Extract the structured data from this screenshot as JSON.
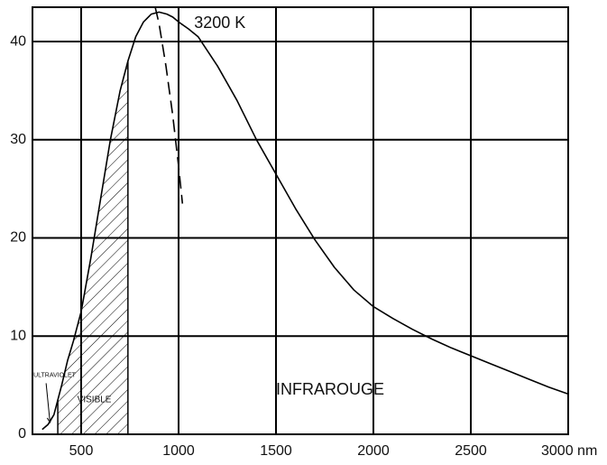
{
  "chart_data": {
    "type": "line",
    "title": "",
    "xlabel": "",
    "ylabel": "",
    "x_unit": "nm",
    "xlim": [
      250,
      3000
    ],
    "ylim": [
      0,
      43.5
    ],
    "grid": true,
    "x_ticks": [
      {
        "value": 500,
        "label": "500"
      },
      {
        "value": 1000,
        "label": "1000"
      },
      {
        "value": 1500,
        "label": "1500"
      },
      {
        "value": 2000,
        "label": "2000"
      },
      {
        "value": 2500,
        "label": "2500"
      },
      {
        "value": 3000,
        "label": "3000 nm"
      }
    ],
    "y_ticks": [
      {
        "value": 0,
        "label": "0"
      },
      {
        "value": 10,
        "label": "10"
      },
      {
        "value": 20,
        "label": "20"
      },
      {
        "value": 30,
        "label": "30"
      },
      {
        "value": 40,
        "label": "40"
      }
    ],
    "series": [
      {
        "name": "3200 K",
        "style": "solid",
        "color": "#000000",
        "x": [
          300,
          330,
          360,
          380,
          400,
          430,
          460,
          500,
          550,
          600,
          650,
          700,
          740,
          780,
          820,
          860,
          900,
          940,
          970,
          1000,
          1050,
          1100,
          1200,
          1300,
          1400,
          1500,
          1600,
          1700,
          1800,
          1900,
          2000,
          2100,
          2200,
          2300,
          2400,
          2500,
          2600,
          2700,
          2800,
          2900,
          3000
        ],
        "y": [
          0.5,
          1.0,
          2.0,
          3.5,
          5.0,
          7.5,
          9.5,
          12.5,
          18,
          24,
          30,
          35,
          38,
          40.5,
          42,
          42.8,
          43.0,
          42.8,
          42.5,
          42.0,
          41.3,
          40.5,
          37.5,
          34,
          30,
          26.5,
          23,
          19.8,
          17,
          14.7,
          13.0,
          11.8,
          10.7,
          9.7,
          8.8,
          8.0,
          7.2,
          6.4,
          5.6,
          4.8,
          4.1
        ]
      },
      {
        "name": "",
        "style": "dashed",
        "color": "#000000",
        "x": [
          880,
          900,
          935,
          970,
          1000,
          1020
        ],
        "y": [
          43.5,
          41.8,
          37.5,
          32.5,
          27.3,
          23.5
        ]
      }
    ],
    "shaded_region": {
      "name": "VISIBLE",
      "x_from": 380,
      "x_to": 740,
      "pattern": "diagonal-hatch"
    },
    "annotations": [
      {
        "text": "3200 K",
        "x": 1080,
        "y": 41.8,
        "size": "big"
      },
      {
        "text": "INFRAROUGE",
        "x": 1500,
        "y": 4.5,
        "size": "big"
      },
      {
        "text": "VISIBLE",
        "x": 480,
        "y": 3.5,
        "size": "med"
      },
      {
        "text": "ULTRAVIOLET",
        "x": 255,
        "y": 6.0,
        "size": "small"
      }
    ],
    "ultraviolet_arrow": {
      "from": [
        320,
        5.2
      ],
      "to": [
        340,
        1.2
      ]
    }
  }
}
